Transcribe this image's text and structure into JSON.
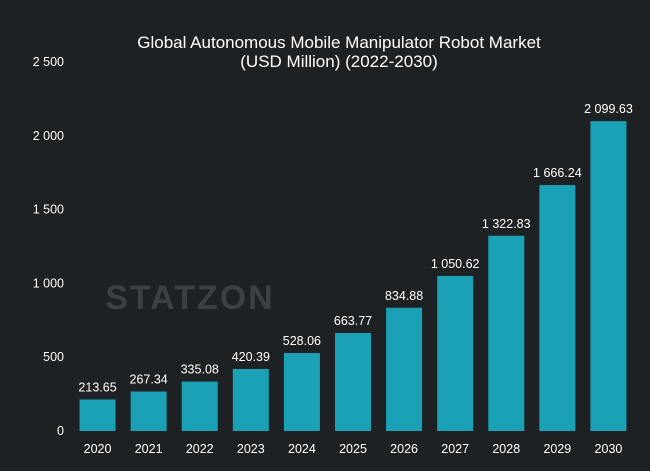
{
  "colors": {
    "background": "#1e2123",
    "bar": "#1aa1b6",
    "text": "#ffffff",
    "watermark": "#3c4043"
  },
  "watermark": "STATZON",
  "chart_data": {
    "type": "bar",
    "title": "Global Autonomous Mobile Manipulator Robot Market",
    "subtitle": "(USD Million) (2022-2030)",
    "xlabel": "",
    "ylabel": "",
    "categories": [
      "2020",
      "2021",
      "2022",
      "2023",
      "2024",
      "2025",
      "2026",
      "2027",
      "2028",
      "2029",
      "2030"
    ],
    "values": [
      213.65,
      267.34,
      335.08,
      420.39,
      528.06,
      663.77,
      834.88,
      1050.62,
      1322.83,
      1666.24,
      2099.63
    ],
    "value_labels": [
      "213.65",
      "267.34",
      "335.08",
      "420.39",
      "528.06",
      "663.77",
      "834.88",
      "1 050.62",
      "1 322.83",
      "1 666.24",
      "2 099.63"
    ],
    "ylim": [
      0,
      2500
    ],
    "yticks": [
      0,
      500,
      1000,
      1500,
      2000,
      2500
    ],
    "ytick_labels": [
      "0",
      "500",
      "1 000",
      "1 500",
      "2 000",
      "2 500"
    ],
    "grid": false,
    "legend": "none"
  }
}
